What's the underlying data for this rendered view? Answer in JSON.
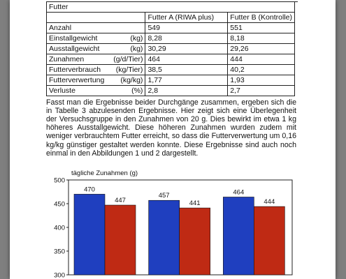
{
  "table": {
    "title": "Futter",
    "columns": [
      "Futter A (RIWA plus)",
      "Futter B (Kontrolle)"
    ],
    "rows": [
      {
        "label": "Anzahl",
        "unit": "",
        "a": "549",
        "b": "551"
      },
      {
        "label": "Einstallgewicht",
        "unit": "(kg)",
        "a": "8,28",
        "b": "8,18"
      },
      {
        "label": "Ausstallgewicht",
        "unit": "(kg)",
        "a": "30,29",
        "b": "29,26"
      },
      {
        "label": "Zunahmen",
        "unit": "(g/d/Tier)",
        "a": "464",
        "b": "444"
      },
      {
        "label": "Futterverbrauch",
        "unit": "(kg/Tier)",
        "a": "38,5",
        "b": "40,2"
      },
      {
        "label": "Futterverwertung",
        "unit": "(kg/kg)",
        "a": "1,77",
        "b": "1,93"
      },
      {
        "label": "Verluste",
        "unit": "(%)",
        "a": "2,8",
        "b": "2,7"
      }
    ]
  },
  "paragraph": "Fasst man die Ergebnisse beider Durchgänge zusammen, ergeben sich die in Tabelle 3 abzulesenden Ergebnisse. Hier zeigt sich eine Überlegenheit der Versuchsgruppe in den Zunahmen von 20 g. Dies bewirkt im etwa 1 kg höheres Ausstallgewicht. Diese höheren Zunahmen wurden zudem mit weniger verbrauchtem Futter erreicht, so dass die Futterverwertung um 0,16 kg/kg günstiger gestaltet werden konnte. Diese Ergebnisse sind auch noch einmal in den Abbildungen 1 und 2 dargestellt.",
  "chart_data": {
    "type": "bar",
    "ylabel": "tägliche Zunahmen (g)",
    "ylim": [
      300,
      500
    ],
    "yticks": [
      300,
      350,
      400,
      450,
      500
    ],
    "categories": [
      "",
      "",
      ""
    ],
    "series": [
      {
        "color": "#1f3fbf",
        "values": [
          470,
          457,
          464
        ]
      },
      {
        "color": "#bf2a14",
        "values": [
          447,
          441,
          444
        ]
      }
    ],
    "grid": false,
    "data_labels": true
  }
}
